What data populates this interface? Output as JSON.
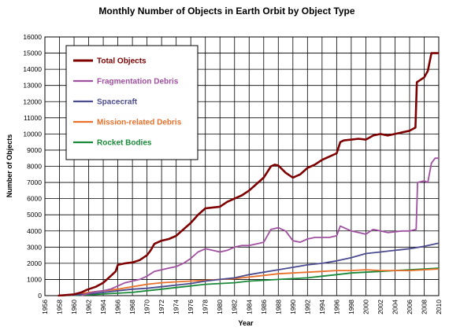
{
  "chart_data": {
    "type": "line",
    "title": "Monthly Number of Objects in Earth Orbit by Object Type",
    "xlabel": "Year",
    "ylabel": "Number of Objects",
    "xlim": [
      1956,
      2010
    ],
    "ylim": [
      0,
      16000
    ],
    "x_ticks": [
      "1956",
      "1958",
      "1960",
      "1962",
      "1964",
      "1966",
      "1968",
      "1970",
      "1972",
      "1974",
      "1976",
      "1978",
      "1980",
      "1982",
      "1984",
      "1986",
      "1988",
      "1990",
      "1992",
      "1994",
      "1996",
      "1998",
      "2000",
      "2002",
      "2004",
      "2006",
      "2008",
      "2010"
    ],
    "y_ticks": [
      "0",
      "1000",
      "2000",
      "3000",
      "4000",
      "5000",
      "6000",
      "7000",
      "8000",
      "9000",
      "10000",
      "11000",
      "12000",
      "13000",
      "14000",
      "15000",
      "16000"
    ],
    "grid": true,
    "legend_position": "top-left inside",
    "series": [
      {
        "name": "Total Objects",
        "color": "#7f0000",
        "x": [
          1957.8,
          1959,
          1960,
          1961,
          1961.7,
          1962,
          1963,
          1964,
          1965,
          1965.7,
          1966,
          1967,
          1968,
          1969,
          1970,
          1970.5,
          1971,
          1972,
          1973,
          1974,
          1975,
          1976,
          1977,
          1978,
          1979,
          1980,
          1981,
          1982,
          1983,
          1984,
          1985,
          1986,
          1987,
          1987.5,
          1988,
          1989,
          1990,
          1991,
          1992,
          1993,
          1994,
          1995,
          1996,
          1996.5,
          1997,
          1998,
          1999,
          2000,
          2001,
          2002,
          2003,
          2004,
          2005,
          2006,
          2006.8,
          2007,
          2008,
          2008.5,
          2009,
          2010
        ],
        "y": [
          0,
          40,
          80,
          200,
          350,
          400,
          550,
          800,
          1200,
          1500,
          1900,
          2000,
          2050,
          2200,
          2500,
          2800,
          3200,
          3400,
          3500,
          3700,
          4100,
          4500,
          5000,
          5400,
          5450,
          5500,
          5800,
          6000,
          6200,
          6500,
          6900,
          7300,
          8000,
          8100,
          8050,
          7600,
          7300,
          7500,
          7900,
          8100,
          8400,
          8600,
          8800,
          9500,
          9600,
          9650,
          9700,
          9650,
          9900,
          10000,
          9900,
          10000,
          10100,
          10200,
          10400,
          13200,
          13500,
          13900,
          15000,
          15000
        ]
      },
      {
        "name": "Fragmentation Debris",
        "color": "#a050a0",
        "x": [
          1961,
          1962,
          1963,
          1964,
          1965,
          1966,
          1967,
          1968,
          1969,
          1970,
          1971,
          1972,
          1973,
          1974,
          1975,
          1976,
          1977,
          1978,
          1979,
          1980,
          1981,
          1982,
          1983,
          1984,
          1985,
          1986,
          1987,
          1988,
          1989,
          1990,
          1991,
          1992,
          1993,
          1994,
          1995,
          1996,
          1996.5,
          1997,
          1998,
          1999,
          2000,
          2001,
          2002,
          2003,
          2004,
          2005,
          2006,
          2006.9,
          2007.1,
          2008,
          2008.5,
          2009,
          2009.5,
          2010
        ],
        "y": [
          0,
          150,
          250,
          300,
          400,
          600,
          800,
          900,
          1000,
          1200,
          1500,
          1600,
          1700,
          1800,
          2000,
          2300,
          2700,
          2900,
          2800,
          2700,
          2800,
          3000,
          3100,
          3100,
          3200,
          3300,
          4100,
          4200,
          4000,
          3400,
          3300,
          3500,
          3600,
          3600,
          3600,
          3700,
          4300,
          4200,
          4000,
          3900,
          3800,
          4100,
          4000,
          3900,
          3950,
          4000,
          4000,
          4100,
          7000,
          7100,
          7000,
          8200,
          8500,
          8500
        ]
      },
      {
        "name": "Spacecraft",
        "color": "#4b4b8f",
        "x": [
          1957.8,
          1960,
          1962,
          1964,
          1966,
          1968,
          1970,
          1972,
          1974,
          1976,
          1978,
          1980,
          1982,
          1984,
          1986,
          1988,
          1990,
          1992,
          1994,
          1996,
          1998,
          2000,
          2002,
          2004,
          2006,
          2008,
          2010
        ],
        "y": [
          0,
          40,
          100,
          200,
          300,
          400,
          450,
          550,
          650,
          750,
          900,
          1000,
          1100,
          1300,
          1450,
          1600,
          1750,
          1900,
          2000,
          2150,
          2350,
          2600,
          2700,
          2800,
          2900,
          3050,
          3250
        ]
      },
      {
        "name": "Mission-related Debris",
        "color": "#e8702a",
        "x": [
          1957.8,
          1960,
          1962,
          1964,
          1966,
          1968,
          1970,
          1972,
          1974,
          1976,
          1978,
          1980,
          1982,
          1984,
          1986,
          1988,
          1990,
          1992,
          1994,
          1996,
          1998,
          2000,
          2002,
          2004,
          2006,
          2008,
          2010
        ],
        "y": [
          0,
          60,
          200,
          300,
          400,
          550,
          700,
          800,
          850,
          900,
          950,
          1000,
          1050,
          1150,
          1250,
          1350,
          1400,
          1450,
          1500,
          1550,
          1550,
          1600,
          1550,
          1550,
          1550,
          1600,
          1650
        ]
      },
      {
        "name": "Rocket Bodies",
        "color": "#1a8a3a",
        "x": [
          1957.8,
          1960,
          1962,
          1964,
          1966,
          1968,
          1970,
          1972,
          1974,
          1976,
          1978,
          1980,
          1982,
          1984,
          1986,
          1988,
          1990,
          1992,
          1994,
          1996,
          1998,
          2000,
          2002,
          2004,
          2006,
          2008,
          2010
        ],
        "y": [
          0,
          20,
          50,
          100,
          150,
          200,
          300,
          400,
          500,
          600,
          700,
          750,
          800,
          900,
          950,
          1000,
          1050,
          1100,
          1200,
          1300,
          1400,
          1450,
          1500,
          1550,
          1600,
          1650,
          1700
        ]
      }
    ]
  }
}
